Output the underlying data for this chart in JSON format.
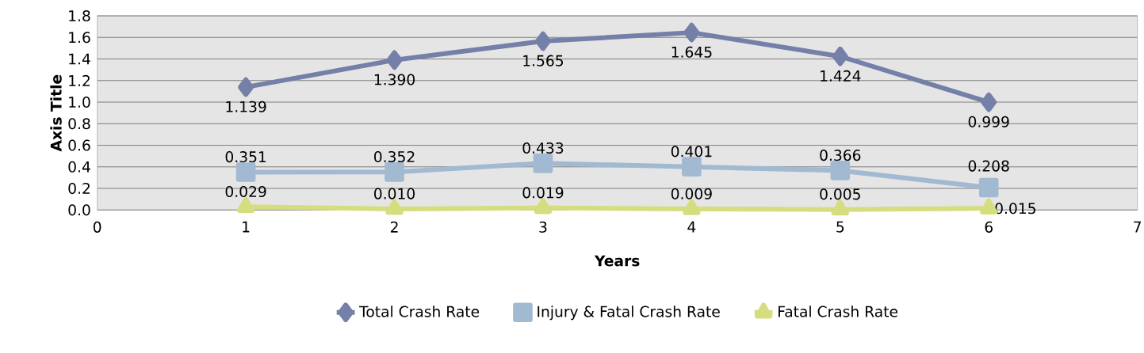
{
  "chart_data": {
    "type": "line",
    "xlabel": "Years",
    "ylabel": "Axis Title",
    "x": [
      1,
      2,
      3,
      4,
      5,
      6
    ],
    "series": [
      {
        "name": "Total Crash Rate",
        "color": "#7480a8",
        "marker": "diamond",
        "values": [
          1.139,
          1.39,
          1.565,
          1.645,
          1.424,
          0.999
        ],
        "value_labels": [
          "1.139",
          "1.390",
          "1.565",
          "1.645",
          "1.424",
          "0.999"
        ]
      },
      {
        "name": "Injury & Fatal Crash Rate",
        "color": "#a2b9d2",
        "marker": "square",
        "values": [
          0.351,
          0.352,
          0.433,
          0.401,
          0.366,
          0.208
        ],
        "value_labels": [
          "0.351",
          "0.352",
          "0.433",
          "0.401",
          "0.366",
          "0.208"
        ]
      },
      {
        "name": "Fatal Crash Rate",
        "color": "#d5dd7e",
        "marker": "triangle",
        "values": [
          0.029,
          0.01,
          0.019,
          0.009,
          0.005,
          0.015
        ],
        "value_labels": [
          "0.029",
          "0.010",
          "0.019",
          "0.009",
          "0.005",
          "0.015"
        ]
      }
    ],
    "xlim": [
      0,
      7
    ],
    "xticks": [
      0,
      1,
      2,
      3,
      4,
      5,
      6,
      7
    ],
    "ylim": [
      0,
      1.8
    ],
    "yticks": [
      {
        "value": 0,
        "label": "0.0"
      },
      0.2,
      0.4,
      0.6,
      0.8,
      {
        "value": 1,
        "label": "1.0"
      },
      1.2,
      1.4,
      1.6,
      1.8
    ],
    "grid": "y",
    "legend": "bottom",
    "line_style": "solid"
  }
}
